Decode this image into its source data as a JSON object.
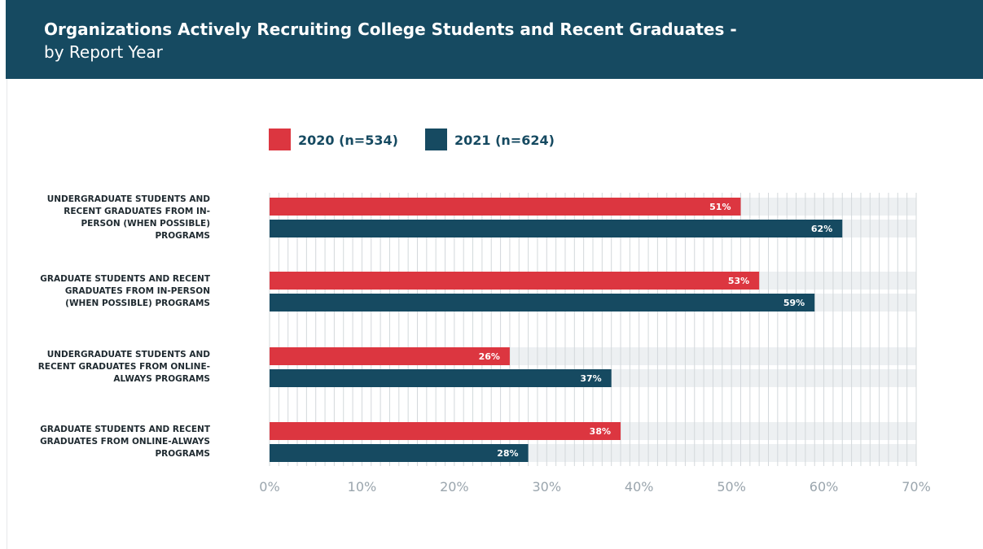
{
  "chart_data": {
    "type": "bar",
    "orientation": "horizontal",
    "title": "Organizations Actively Recruiting College Students and Recent Graduates -",
    "subtitle": "by Report Year",
    "categories": [
      "UNDERGRADUATE STUDENTS AND RECENT GRADUATES FROM IN-PERSON (WHEN POSSIBLE) PROGRAMS",
      "GRADUATE STUDENTS AND RECENT GRADUATES FROM IN-PERSON (WHEN POSSIBLE) PROGRAMS",
      "UNDERGRADUATE STUDENTS AND RECENT GRADUATES FROM ONLINE-ALWAYS PROGRAMS",
      "GRADUATE STUDENTS AND RECENT GRADUATES FROM ONLINE-ALWAYS PROGRAMS"
    ],
    "series": [
      {
        "name": "2020 (n=534)",
        "color": "#dc3640",
        "values": [
          51,
          53,
          26,
          38
        ],
        "value_labels": [
          "51%",
          "53%",
          "26%",
          "38%"
        ]
      },
      {
        "name": "2021 (n=624)",
        "color": "#164a61",
        "values": [
          62,
          59,
          37,
          28
        ],
        "value_labels": [
          "62%",
          "59%",
          "37%",
          "28%"
        ]
      }
    ],
    "xlim": [
      0,
      70
    ],
    "xticks": [
      {
        "value": 0,
        "label": "0%"
      },
      {
        "value": 10,
        "label": "10%"
      },
      {
        "value": 20,
        "label": "20%"
      },
      {
        "value": 30,
        "label": "30%"
      },
      {
        "value": 40,
        "label": "40%"
      },
      {
        "value": 50,
        "label": "50%"
      },
      {
        "value": 60,
        "label": "60%"
      },
      {
        "value": 70,
        "label": "70%"
      }
    ],
    "grid": true,
    "legend": "top"
  }
}
